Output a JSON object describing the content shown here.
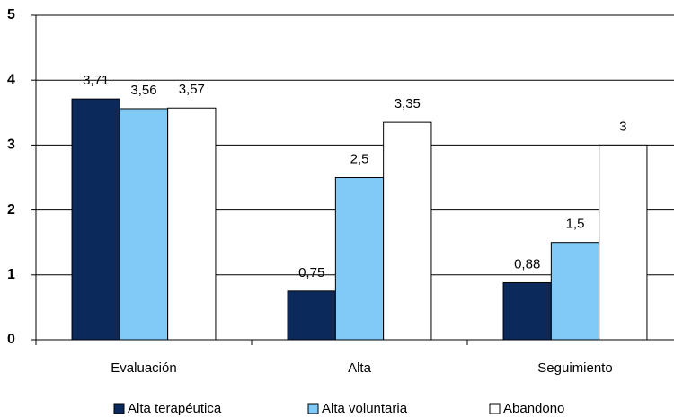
{
  "chart_data": {
    "type": "bar",
    "categories": [
      "Evaluación",
      "Alta",
      "Seguimiento"
    ],
    "series": [
      {
        "name": "Alta terapéutica",
        "color": "#0b2a5b",
        "values": [
          3.71,
          0.75,
          0.88
        ],
        "value_labels": [
          "3,71",
          "0,75",
          "0,88"
        ]
      },
      {
        "name": "Alta voluntaria",
        "color": "#80caf8",
        "values": [
          3.56,
          2.5,
          1.5
        ],
        "value_labels": [
          "3,56",
          "2,5",
          "1,5"
        ]
      },
      {
        "name": "Abandono",
        "color": "#ffffff",
        "values": [
          3.57,
          3.35,
          3
        ],
        "value_labels": [
          "3,57",
          "3,35",
          "3"
        ]
      }
    ],
    "ylim": [
      0,
      5
    ],
    "yticks": [
      0,
      1,
      2,
      3,
      4,
      5
    ],
    "grid": true,
    "legend": "bottom"
  }
}
